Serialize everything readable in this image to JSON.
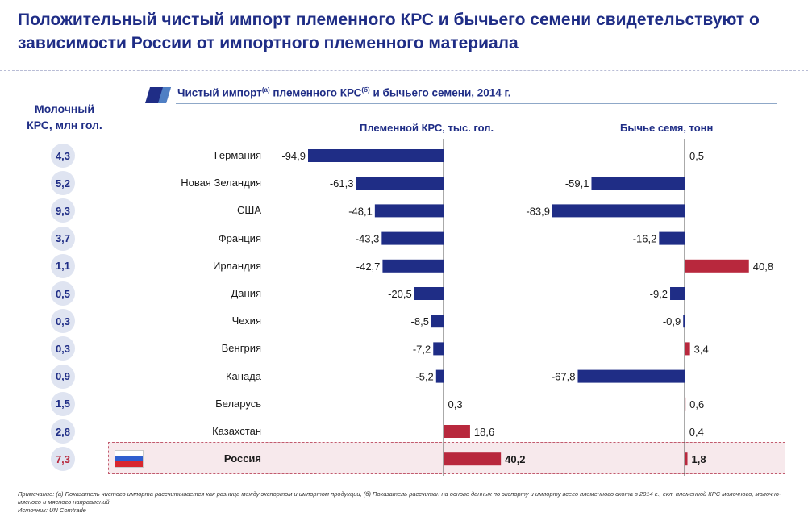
{
  "title": "Положительный чистый импорт племенного КРС и бычьего семени свидетельствуют о зависимости России от импортного племенного материала",
  "subtitle": {
    "part1": "Чистый импорт",
    "sup1": "(а)",
    "part2": " племенного КРС",
    "sup2": "(б)",
    "part3": " и бычьего семени, 2014 г."
  },
  "left_header": [
    "Молочный",
    "КРС, млн гол."
  ],
  "colors": {
    "navy": "#1f2d86",
    "red": "#b8283d",
    "highlight_bg": "#f7e9ec"
  },
  "chart_data": {
    "type": "bar",
    "orientation": "horizontal",
    "categories": [
      "Германия",
      "Новая Зеландия",
      "США",
      "Франция",
      "Ирландия",
      "Дания",
      "Чехия",
      "Венгрия",
      "Канада",
      "Беларусь",
      "Казахстан",
      "Россия"
    ],
    "dairy_cattle_mln": [
      "4,3",
      "5,2",
      "9,3",
      "3,7",
      "1,1",
      "0,5",
      "0,3",
      "0,3",
      "0,9",
      "1,5",
      "2,8",
      "7,3"
    ],
    "highlight": "Россия",
    "series": [
      {
        "name": "Племенной КРС, тыс. гол.",
        "values": [
          -94.9,
          -61.3,
          -48.1,
          -43.3,
          -42.7,
          -20.5,
          -8.5,
          -7.2,
          -5.2,
          0.3,
          18.6,
          40.2
        ],
        "labels": [
          "-94,9",
          "-61,3",
          "-48,1",
          "-43,3",
          "-42,7",
          "-20,5",
          "-8,5",
          "-7,2",
          "-5,2",
          "0,3",
          "18,6",
          "40,2"
        ]
      },
      {
        "name": "Бычье семя, тонн",
        "values": [
          0.5,
          -59.1,
          -83.9,
          -16.2,
          40.8,
          -9.2,
          -0.9,
          3.4,
          -67.8,
          0.6,
          0.4,
          1.8
        ],
        "labels": [
          "0,5",
          "-59,1",
          "-83,9",
          "-16,2",
          "40,8",
          "-9,2",
          "-0,9",
          "3,4",
          "-67,8",
          "0,6",
          "0,4",
          "1,8"
        ]
      }
    ]
  },
  "note": {
    "line1": "Примечание: (а) Показатель чистого импорта рассчитывается как разница между экспортом и импортом продукции, (б) Показатель рассчитан на основе данных по экспорту и импорту всего племенного скота в 2014 г., екл. племенной КРС молочного, молочно-мясного и мясного направлений",
    "line2": "Источник: UN Comtrade"
  }
}
